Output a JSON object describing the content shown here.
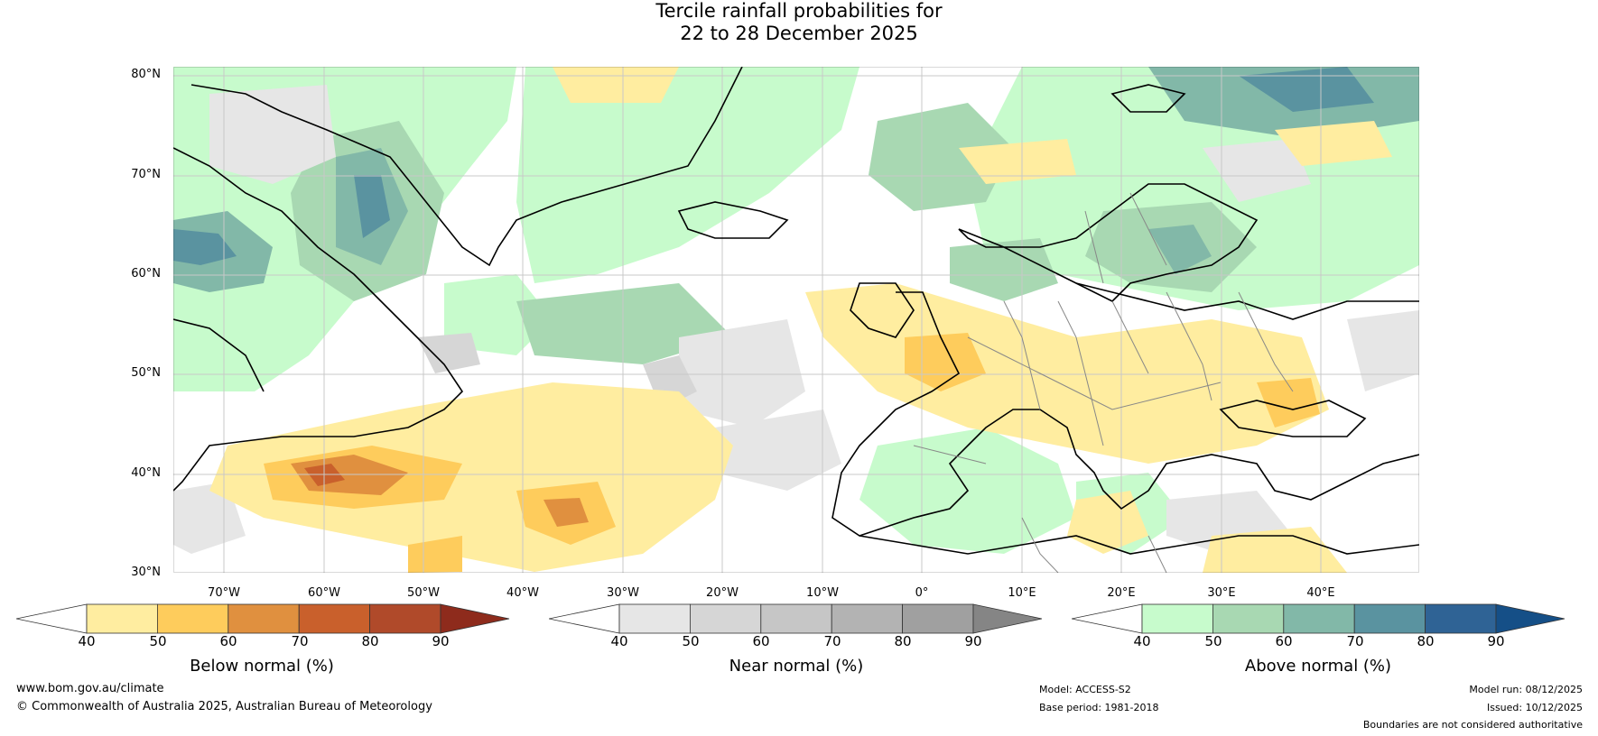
{
  "title": {
    "line1": "Tercile rainfall probabilities for",
    "line2": "22 to 28 December 2025"
  },
  "lat_labels": [
    "80°N",
    "70°N",
    "60°N",
    "50°N",
    "40°N",
    "30°N"
  ],
  "lon_labels": [
    "70°W",
    "60°W",
    "50°W",
    "40°W",
    "30°W",
    "20°W",
    "10°W",
    "0°",
    "10°E",
    "20°E",
    "30°E",
    "40°E"
  ],
  "colorbars": [
    {
      "id": "below",
      "label": "Below normal (%)",
      "ticks": [
        "40",
        "50",
        "60",
        "70",
        "80",
        "90"
      ],
      "colors": [
        "#ffeda0",
        "#fecc5c",
        "#e0903f",
        "#c9602c",
        "#b04a2a",
        "#8e2b1c"
      ]
    },
    {
      "id": "near",
      "label": "Near normal (%)",
      "ticks": [
        "40",
        "50",
        "60",
        "70",
        "80",
        "90"
      ],
      "colors": [
        "#e6e6e6",
        "#d6d6d6",
        "#c6c6c6",
        "#b3b3b3",
        "#a0a0a0",
        "#858585"
      ]
    },
    {
      "id": "above",
      "label": "Above normal (%)",
      "ticks": [
        "40",
        "50",
        "60",
        "70",
        "80",
        "90"
      ],
      "colors": [
        "#c7fbcc",
        "#a8d8b2",
        "#82b8a8",
        "#5a93a0",
        "#2f6395",
        "#154f87"
      ]
    }
  ],
  "footer": {
    "website": "www.bom.gov.au/climate",
    "copyright": "© Commonwealth of Australia 2025, Australian Bureau of Meteorology",
    "model": "Model: ACCESS-S2",
    "base_period": "Base period: 1981-2018",
    "model_run": "Model run: 08/12/2025",
    "issued": "Issued: 10/12/2025",
    "disclaimer": "Boundaries are not considered authoritative"
  }
}
